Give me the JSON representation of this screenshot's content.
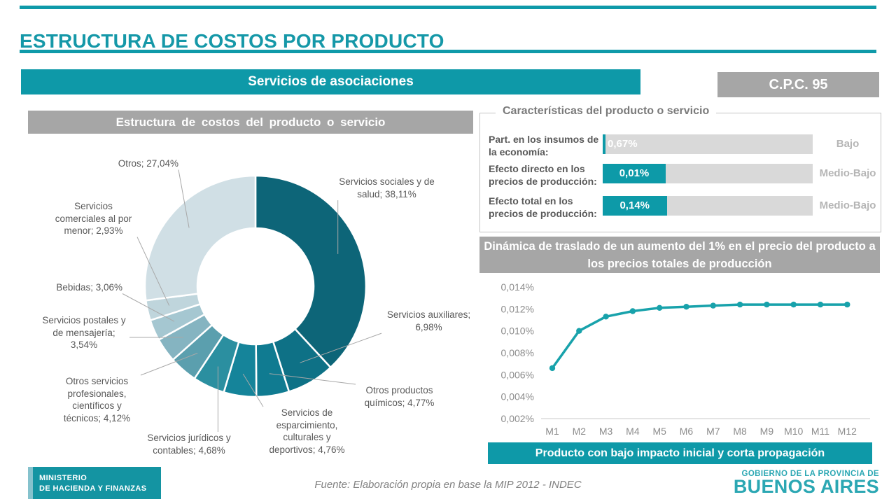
{
  "colors": {
    "teal": "#0e99a8",
    "banner_gray": "#a6a6a6",
    "bar_background": "#d9d9d9",
    "line_teal": "#18a2ab",
    "leader_gray": "#a8a8a8",
    "axis_gray": "#8c8c8c",
    "government_teal": "#2ba7b3"
  },
  "header": {
    "title": "ESTRUCTURA DE COSTOS POR PRODUCTO",
    "product_banner": "Servicios de asociaciones",
    "cpc_code": "C.P.C. 95"
  },
  "conclusion_banner": "Producto con bajo impacto inicial y corta propagación",
  "footer": {
    "ministry": [
      "MINISTERIO",
      "DE HACIENDA Y FINANZAS"
    ],
    "source": "Fuente: Elaboración propia en base la MIP 2012 - INDEC",
    "government": [
      "GOBIERNO DE LA PROVINCIA DE",
      "BUENOS AIRES"
    ]
  },
  "chart_data": [
    {
      "type": "pie",
      "subtype": "donut",
      "title": "Estructura de costos del producto o servicio",
      "start_angle_deg": 0,
      "direction": "clockwise",
      "slices": [
        {
          "name": "Servicios sociales y de salud",
          "value": 38.11,
          "label": "Servicios sociales y de salud; 38,11%",
          "color": "#0d6578"
        },
        {
          "name": "Servicios auxiliares",
          "value": 6.98,
          "label": "Servicios auxiliares; 6,98%",
          "color": "#0e7186"
        },
        {
          "name": "Otros productos químicos",
          "value": 4.77,
          "label": "Otros productos químicos; 4,77%",
          "color": "#107b91"
        },
        {
          "name": "Servicios de esparcimiento, culturales y deportivos",
          "value": 4.76,
          "label": "Servicios de esparcimiento, culturales y deportivos; 4,76%",
          "color": "#15849a"
        },
        {
          "name": "Servicios jurídicos y contables",
          "value": 4.68,
          "label": "Servicios jurídicos y contables; 4,68%",
          "color": "#2b8fa0"
        },
        {
          "name": "Otros servicios profesionales, científicos y técnicos",
          "value": 4.12,
          "label": "Otros servicios profesionales, científicos y técnicos; 4,12%",
          "color": "#5b9fae"
        },
        {
          "name": "Servicios postales y de mensajería",
          "value": 3.54,
          "label": "Servicios postales y de mensajería; 3,54%",
          "color": "#85b4c1"
        },
        {
          "name": "Bebidas",
          "value": 3.06,
          "label": "Bebidas; 3,06%",
          "color": "#a5c7d1"
        },
        {
          "name": "Servicios comerciales al por menor",
          "value": 2.93,
          "label": "Servicios comerciales al por menor; 2,93%",
          "color": "#bfd5dc"
        },
        {
          "name": "Otros",
          "value": 27.04,
          "label": "Otros; 27,04%",
          "color": "#d0dfe5"
        }
      ]
    },
    {
      "type": "bar",
      "title": "Características del producto o servicio",
      "rows": [
        {
          "label": "Part. en los insumos de la economía:",
          "value": 0.67,
          "value_label": "0,67%",
          "rating": "Bajo",
          "fill_pct": 1.2
        },
        {
          "label": "Efecto directo en los precios de producción:",
          "value": 0.01,
          "value_label": "0,01%",
          "rating": "Medio-Bajo",
          "fill_pct": 30
        },
        {
          "label": "Efecto total en los precios de producción:",
          "value": 0.14,
          "value_label": "0,14%",
          "rating": "Medio-Bajo",
          "fill_pct": 30.5
        }
      ]
    },
    {
      "type": "line",
      "title": "Dinámica de traslado de un aumento del 1% en el precio del producto a los precios totales de producción",
      "x": [
        "M1",
        "M2",
        "M3",
        "M4",
        "M5",
        "M6",
        "M7",
        "M8",
        "M9",
        "M10",
        "M11",
        "M12"
      ],
      "values": [
        0.0066,
        0.01,
        0.0113,
        0.0118,
        0.0121,
        0.0122,
        0.0123,
        0.0124,
        0.0124,
        0.0124,
        0.0124,
        0.0124
      ],
      "unit": "%",
      "ylim": [
        0.002,
        0.014
      ],
      "yticks": [
        {
          "v": 0.002,
          "label": "0,002%"
        },
        {
          "v": 0.004,
          "label": "0,004%"
        },
        {
          "v": 0.006,
          "label": "0,006%"
        },
        {
          "v": 0.008,
          "label": "0,008%"
        },
        {
          "v": 0.01,
          "label": "0,010%"
        },
        {
          "v": 0.012,
          "label": "0,012%"
        },
        {
          "v": 0.014,
          "label": "0,014%"
        }
      ],
      "grid": false,
      "legend": "none"
    }
  ]
}
